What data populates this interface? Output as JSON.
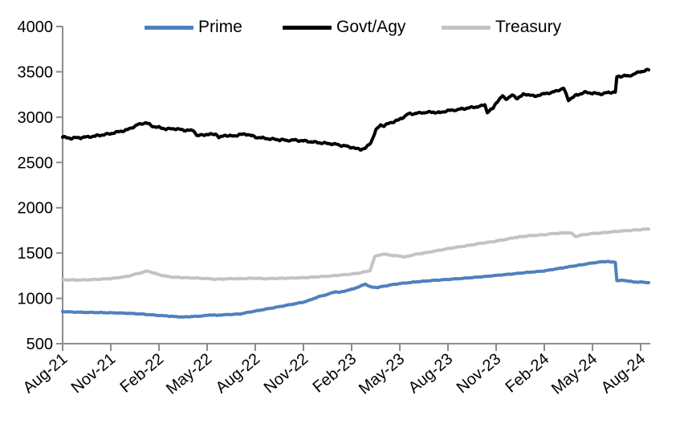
{
  "chart_data": {
    "type": "line",
    "title": "",
    "grid": false,
    "background": "#ffffff",
    "axis_color": "#8c8c8c",
    "tick_label_color": "#000000",
    "legend": {
      "position": "top"
    },
    "y_axis": {
      "min": 500,
      "max": 4000,
      "step": 500,
      "ticks": [
        4000,
        3500,
        3000,
        2500,
        2000,
        1500,
        1000,
        500
      ]
    },
    "x_axis": {
      "labels": [
        "Aug-21",
        "Nov-21",
        "Feb-22",
        "May-22",
        "Aug-22",
        "Nov-22",
        "Feb-23",
        "May-23",
        "Aug-23",
        "Nov-23",
        "Feb-24",
        "May-24",
        "Aug-24"
      ],
      "months_per_tick": 3,
      "label_rotation_deg": -40,
      "t_definition": "t = months since Aug-2021 (fractional t = intra-month date)"
    },
    "series": [
      {
        "name": "Prime",
        "color": "#4F81BD",
        "stroke_width": 4,
        "noise": 3.5,
        "points": [
          [
            0,
            855
          ],
          [
            0.5,
            850
          ],
          [
            1,
            847
          ],
          [
            2,
            844
          ],
          [
            3,
            841
          ],
          [
            4,
            836
          ],
          [
            5,
            826
          ],
          [
            6,
            812
          ],
          [
            7,
            799
          ],
          [
            7.5,
            794
          ],
          [
            8,
            799
          ],
          [
            8.7,
            806
          ],
          [
            9.2,
            818
          ],
          [
            9.6,
            813
          ],
          [
            10,
            818
          ],
          [
            11,
            827
          ],
          [
            12,
            860
          ],
          [
            13,
            892
          ],
          [
            14,
            925
          ],
          [
            15,
            958
          ],
          [
            15.5,
            988
          ],
          [
            16,
            1022
          ],
          [
            16.5,
            1043
          ],
          [
            17,
            1075
          ],
          [
            17.2,
            1064
          ],
          [
            18,
            1100
          ],
          [
            18.5,
            1130
          ],
          [
            18.85,
            1158
          ],
          [
            19.2,
            1124
          ],
          [
            19.6,
            1120
          ],
          [
            20,
            1134
          ],
          [
            20.5,
            1150
          ],
          [
            21,
            1163
          ],
          [
            21.5,
            1172
          ],
          [
            22,
            1182
          ],
          [
            23,
            1197
          ],
          [
            24,
            1209
          ],
          [
            25,
            1222
          ],
          [
            26,
            1237
          ],
          [
            27,
            1253
          ],
          [
            28,
            1270
          ],
          [
            29,
            1287
          ],
          [
            30,
            1303
          ],
          [
            31,
            1333
          ],
          [
            32,
            1362
          ],
          [
            33,
            1390
          ],
          [
            33.6,
            1404
          ],
          [
            34,
            1408
          ],
          [
            34.15,
            1398
          ],
          [
            34.3,
            1402
          ],
          [
            34.42,
            1400
          ],
          [
            34.52,
            1196
          ],
          [
            35,
            1198
          ],
          [
            35.3,
            1190
          ],
          [
            35.5,
            1182
          ],
          [
            36,
            1180
          ],
          [
            36.5,
            1175
          ]
        ]
      },
      {
        "name": "Govt/Agy",
        "color": "#000000",
        "stroke_width": 4,
        "noise": 11,
        "points": [
          [
            0,
            2780
          ],
          [
            0.4,
            2768
          ],
          [
            1,
            2772
          ],
          [
            2,
            2790
          ],
          [
            3,
            2818
          ],
          [
            4,
            2858
          ],
          [
            4.7,
            2918
          ],
          [
            5.2,
            2938
          ],
          [
            5.6,
            2900
          ],
          [
            6,
            2885
          ],
          [
            6.5,
            2868
          ],
          [
            7,
            2872
          ],
          [
            7.5,
            2858
          ],
          [
            8,
            2852
          ],
          [
            8.2,
            2848
          ],
          [
            8.35,
            2795
          ],
          [
            9,
            2808
          ],
          [
            9.6,
            2812
          ],
          [
            9.75,
            2772
          ],
          [
            10.1,
            2800
          ],
          [
            10.6,
            2790
          ],
          [
            11,
            2806
          ],
          [
            11.5,
            2812
          ],
          [
            12,
            2780
          ],
          [
            12.5,
            2768
          ],
          [
            13,
            2758
          ],
          [
            13.5,
            2750
          ],
          [
            14,
            2744
          ],
          [
            14.5,
            2748
          ],
          [
            15,
            2738
          ],
          [
            15.5,
            2728
          ],
          [
            16,
            2718
          ],
          [
            16.5,
            2710
          ],
          [
            17,
            2700
          ],
          [
            17.5,
            2684
          ],
          [
            18,
            2668
          ],
          [
            18.3,
            2652
          ],
          [
            18.6,
            2645
          ],
          [
            18.9,
            2662
          ],
          [
            19.2,
            2722
          ],
          [
            19.5,
            2852
          ],
          [
            19.8,
            2915
          ],
          [
            20,
            2905
          ],
          [
            20.3,
            2928
          ],
          [
            20.6,
            2948
          ],
          [
            21,
            2975
          ],
          [
            21.5,
            3032
          ],
          [
            22,
            3042
          ],
          [
            22.5,
            3050
          ],
          [
            23,
            3056
          ],
          [
            23.5,
            3048
          ],
          [
            24,
            3072
          ],
          [
            24.5,
            3080
          ],
          [
            25,
            3095
          ],
          [
            25.5,
            3105
          ],
          [
            26,
            3120
          ],
          [
            26.3,
            3135
          ],
          [
            26.45,
            3052
          ],
          [
            26.8,
            3095
          ],
          [
            27,
            3160
          ],
          [
            27.4,
            3232
          ],
          [
            27.6,
            3200
          ],
          [
            28,
            3240
          ],
          [
            28.3,
            3208
          ],
          [
            28.7,
            3248
          ],
          [
            29,
            3252
          ],
          [
            29.4,
            3230
          ],
          [
            30,
            3258
          ],
          [
            30.5,
            3272
          ],
          [
            31,
            3305
          ],
          [
            31.2,
            3318
          ],
          [
            31.5,
            3192
          ],
          [
            32,
            3242
          ],
          [
            32.5,
            3272
          ],
          [
            33,
            3265
          ],
          [
            33.5,
            3255
          ],
          [
            34,
            3272
          ],
          [
            34.3,
            3276
          ],
          [
            34.42,
            3272
          ],
          [
            34.52,
            3442
          ],
          [
            34.8,
            3452
          ],
          [
            35,
            3462
          ],
          [
            35.2,
            3448
          ],
          [
            35.6,
            3478
          ],
          [
            36,
            3502
          ],
          [
            36.5,
            3522
          ]
        ]
      },
      {
        "name": "Treasury",
        "color": "#C3C3C3",
        "stroke_width": 4,
        "noise": 4.5,
        "points": [
          [
            0,
            1205
          ],
          [
            1,
            1202
          ],
          [
            2,
            1208
          ],
          [
            3,
            1218
          ],
          [
            4,
            1242
          ],
          [
            5,
            1288
          ],
          [
            5.3,
            1302
          ],
          [
            5.8,
            1272
          ],
          [
            6,
            1262
          ],
          [
            6.5,
            1242
          ],
          [
            7,
            1232
          ],
          [
            8,
            1226
          ],
          [
            9,
            1218
          ],
          [
            9.5,
            1212
          ],
          [
            10,
            1213
          ],
          [
            10.5,
            1218
          ],
          [
            11,
            1216
          ],
          [
            11.5,
            1220
          ],
          [
            12,
            1222
          ],
          [
            12.5,
            1217
          ],
          [
            13,
            1219
          ],
          [
            14,
            1223
          ],
          [
            15,
            1228
          ],
          [
            15.5,
            1232
          ],
          [
            16,
            1240
          ],
          [
            16.5,
            1245
          ],
          [
            17,
            1252
          ],
          [
            17.5,
            1260
          ],
          [
            18,
            1268
          ],
          [
            18.5,
            1280
          ],
          [
            19,
            1300
          ],
          [
            19.15,
            1308
          ],
          [
            19.45,
            1462
          ],
          [
            19.7,
            1478
          ],
          [
            20,
            1488
          ],
          [
            20.3,
            1482
          ],
          [
            20.6,
            1470
          ],
          [
            21,
            1468
          ],
          [
            21.3,
            1455
          ],
          [
            21.6,
            1470
          ],
          [
            22,
            1487
          ],
          [
            22.5,
            1500
          ],
          [
            23,
            1516
          ],
          [
            23.5,
            1532
          ],
          [
            24,
            1550
          ],
          [
            24.5,
            1562
          ],
          [
            25,
            1576
          ],
          [
            25.5,
            1590
          ],
          [
            26,
            1606
          ],
          [
            26.5,
            1618
          ],
          [
            27,
            1632
          ],
          [
            27.5,
            1648
          ],
          [
            28,
            1665
          ],
          [
            28.5,
            1680
          ],
          [
            29,
            1690
          ],
          [
            29.5,
            1696
          ],
          [
            30,
            1702
          ],
          [
            30.5,
            1714
          ],
          [
            31,
            1720
          ],
          [
            31.5,
            1726
          ],
          [
            31.7,
            1718
          ],
          [
            31.95,
            1682
          ],
          [
            32.3,
            1697
          ],
          [
            32.6,
            1706
          ],
          [
            33,
            1716
          ],
          [
            33.5,
            1722
          ],
          [
            34,
            1730
          ],
          [
            34.5,
            1738
          ],
          [
            35,
            1746
          ],
          [
            35.5,
            1752
          ],
          [
            36,
            1758
          ],
          [
            36.5,
            1766
          ]
        ]
      }
    ]
  }
}
